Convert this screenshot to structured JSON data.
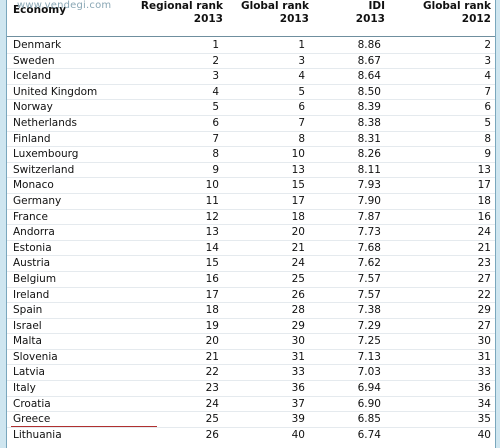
{
  "watermark": "www.vendegi.com",
  "headers": {
    "economy": "Economy",
    "regional_rank": [
      "Regional rank",
      "2013"
    ],
    "global_rank_2013": [
      "Global rank",
      "2013"
    ],
    "idi": [
      "IDI",
      "2013"
    ],
    "global_rank_2012": [
      "Global rank",
      "2012"
    ]
  },
  "rows": [
    {
      "economy": "Denmark",
      "regional": "1",
      "global2013": "1",
      "idi": "8.86",
      "global2012": "2"
    },
    {
      "economy": "Sweden",
      "regional": "2",
      "global2013": "3",
      "idi": "8.67",
      "global2012": "3"
    },
    {
      "economy": "Iceland",
      "regional": "3",
      "global2013": "4",
      "idi": "8.64",
      "global2012": "4"
    },
    {
      "economy": "United Kingdom",
      "regional": "4",
      "global2013": "5",
      "idi": "8.50",
      "global2012": "7"
    },
    {
      "economy": "Norway",
      "regional": "5",
      "global2013": "6",
      "idi": "8.39",
      "global2012": "6"
    },
    {
      "economy": "Netherlands",
      "regional": "6",
      "global2013": "7",
      "idi": "8.38",
      "global2012": "5"
    },
    {
      "economy": "Finland",
      "regional": "7",
      "global2013": "8",
      "idi": "8.31",
      "global2012": "8"
    },
    {
      "economy": "Luxembourg",
      "regional": "8",
      "global2013": "10",
      "idi": "8.26",
      "global2012": "9"
    },
    {
      "economy": "Switzerland",
      "regional": "9",
      "global2013": "13",
      "idi": "8.11",
      "global2012": "13"
    },
    {
      "economy": "Monaco",
      "regional": "10",
      "global2013": "15",
      "idi": "7.93",
      "global2012": "17"
    },
    {
      "economy": "Germany",
      "regional": "11",
      "global2013": "17",
      "idi": "7.90",
      "global2012": "18"
    },
    {
      "economy": "France",
      "regional": "12",
      "global2013": "18",
      "idi": "7.87",
      "global2012": "16"
    },
    {
      "economy": "Andorra",
      "regional": "13",
      "global2013": "20",
      "idi": "7.73",
      "global2012": "24"
    },
    {
      "economy": "Estonia",
      "regional": "14",
      "global2013": "21",
      "idi": "7.68",
      "global2012": "21"
    },
    {
      "economy": "Austria",
      "regional": "15",
      "global2013": "24",
      "idi": "7.62",
      "global2012": "23"
    },
    {
      "economy": "Belgium",
      "regional": "16",
      "global2013": "25",
      "idi": "7.57",
      "global2012": "27"
    },
    {
      "economy": "Ireland",
      "regional": "17",
      "global2013": "26",
      "idi": "7.57",
      "global2012": "22"
    },
    {
      "economy": "Spain",
      "regional": "18",
      "global2013": "28",
      "idi": "7.38",
      "global2012": "29"
    },
    {
      "economy": "Israel",
      "regional": "19",
      "global2013": "29",
      "idi": "7.29",
      "global2012": "27"
    },
    {
      "economy": "Malta",
      "regional": "20",
      "global2013": "30",
      "idi": "7.25",
      "global2012": "30"
    },
    {
      "economy": "Slovenia",
      "regional": "21",
      "global2013": "31",
      "idi": "7.13",
      "global2012": "31"
    },
    {
      "economy": "Latvia",
      "regional": "22",
      "global2013": "33",
      "idi": "7.03",
      "global2012": "33"
    },
    {
      "economy": "Italy",
      "regional": "23",
      "global2013": "36",
      "idi": "6.94",
      "global2012": "36"
    },
    {
      "economy": "Croatia",
      "regional": "24",
      "global2013": "37",
      "idi": "6.90",
      "global2012": "34"
    },
    {
      "economy": "Greece",
      "regional": "25",
      "global2013": "39",
      "idi": "6.85",
      "global2012": "35"
    },
    {
      "economy": "Lithuania",
      "regional": "26",
      "global2013": "40",
      "idi": "6.74",
      "global2012": "40"
    }
  ],
  "colors": {
    "background": "#cfe6f0",
    "table_bg": "#ffffff",
    "text": "#111111",
    "divider": "#6f8f9f",
    "accent_line": "#b03030"
  }
}
